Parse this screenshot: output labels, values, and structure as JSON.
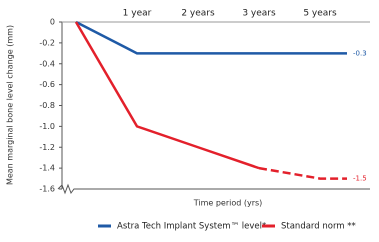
{
  "chart_data": {
    "type": "line",
    "y_label": "Mean marginal bone level change (mm)",
    "x_label": "Time period (yrs)",
    "categories": [
      null,
      "1 year",
      "2 years",
      "3 years",
      "5 years",
      null
    ],
    "series": [
      {
        "name": "Astra Tech Implant System™ level*",
        "color": "#1f5aa6",
        "values": [
          0,
          -0.3,
          -0.3,
          -0.3,
          -0.3,
          -0.3
        ],
        "value_labels": [
          null,
          null,
          null,
          null,
          null,
          "-0.3"
        ]
      },
      {
        "name": "Standard norm **",
        "color": "#e3202b",
        "values": [
          0,
          -1.0,
          -1.2,
          -1.4,
          -1.5,
          -1.5
        ],
        "value_labels": [
          null,
          null,
          null,
          null,
          null,
          "-1.5"
        ],
        "dash_start": 3
      }
    ],
    "ylim": [
      -1.6,
      0
    ],
    "yticks": [
      0,
      -0.2,
      -0.4,
      -0.6,
      -0.8,
      {
        "value": -1,
        "label": "-1.0"
      },
      -1.2,
      -1.4,
      -1.6
    ],
    "legend": "bottom"
  }
}
